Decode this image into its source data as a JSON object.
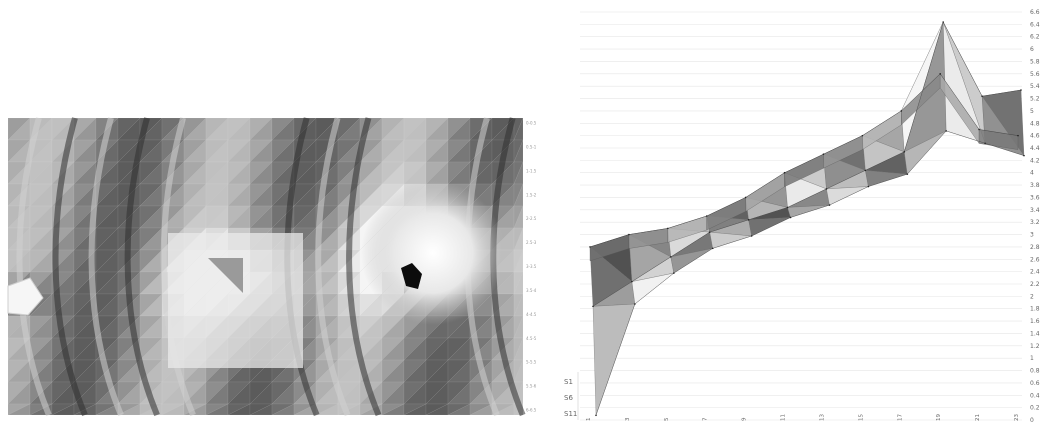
{
  "chart_data": [
    {
      "type": "heatmap",
      "description_role": "contour-map",
      "right_tick_labels": [
        "0-0.5",
        "0.5-1",
        "1-1.5",
        "1.5-2",
        "2-2.5",
        "2.5-3",
        "3-3.5",
        "3.5-4",
        "4-4.5",
        "4.5-5",
        "5-5.5",
        "5.5-6",
        "6-6.5"
      ],
      "grid": true,
      "colors": {
        "dark": "#2a2a2a",
        "mid": "#8a8a8a",
        "light": "#f2f2f2",
        "grid": "#e8e8e8"
      }
    },
    {
      "type": "area",
      "description_role": "3d-surface",
      "x_categories": [
        "1",
        "3",
        "5",
        "7",
        "9",
        "11",
        "13",
        "15",
        "17",
        "19",
        "21",
        "23"
      ],
      "z_series_labels": [
        "S1",
        "S6",
        "S11"
      ],
      "ylim": [
        0,
        6.6
      ],
      "y_ticks": [
        0,
        0.2,
        0.4,
        0.6,
        0.8,
        1,
        1.2,
        1.4,
        1.6,
        1.8,
        2,
        2.2,
        2.4,
        2.6,
        2.8,
        3,
        3.2,
        3.4,
        3.6,
        3.8,
        4,
        4.2,
        4.4,
        4.6,
        4.8,
        5,
        5.2,
        5.4,
        5.6,
        5.8,
        6,
        6.2,
        6.4,
        6.6
      ],
      "y_tick_labels": [
        "0",
        "0.2",
        "0.4",
        "0.6",
        "0.8",
        "1",
        "1.2",
        "1.4",
        "1.6",
        "1.8",
        "2",
        "2.2",
        "2.4",
        "2.6",
        "2.8",
        "3",
        "3.2",
        "3.4",
        "3.6",
        "3.8",
        "4",
        "4.2",
        "4.4",
        "4.6",
        "4.8",
        "5",
        "5.2",
        "5.4",
        "5.6",
        "5.8",
        "6",
        "6.2",
        "6.4",
        "6.6"
      ],
      "series": [
        {
          "name": "S1",
          "values": [
            2.8,
            3.0,
            3.1,
            3.3,
            3.6,
            4.0,
            4.3,
            4.6,
            5.0,
            5.6,
            4.7,
            4.6
          ]
        },
        {
          "name": "S6",
          "values": [
            2.0,
            2.4,
            2.8,
            3.2,
            3.4,
            3.6,
            3.9,
            4.2,
            4.5,
            6.6,
            5.4,
            5.5
          ]
        },
        {
          "name": "S11",
          "values": [
            0.4,
            2.2,
            2.7,
            3.1,
            3.3,
            3.6,
            3.8,
            4.1,
            4.3,
            5.0,
            4.8,
            4.6
          ]
        }
      ],
      "grid": true,
      "colors": {
        "surface_dark": "#3a3a3a",
        "surface_light": "#d8d8d8",
        "grid": "#e6e6e6"
      }
    }
  ]
}
